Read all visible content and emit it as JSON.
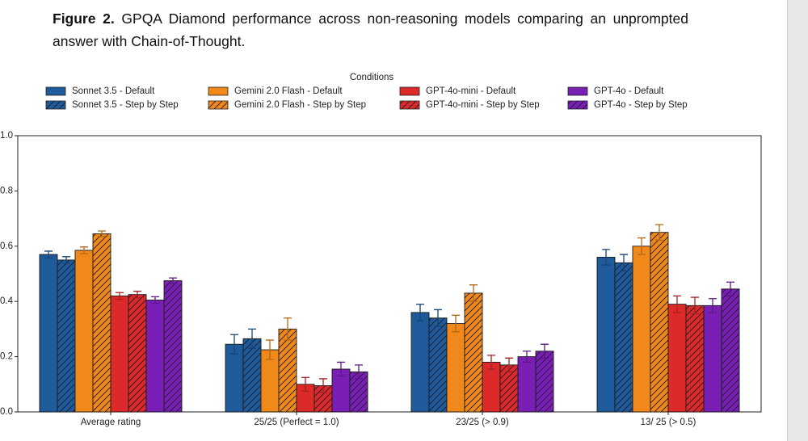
{
  "caption": {
    "label": "Figure 2.",
    "text": "GPQA Diamond performance across non-reasoning models comparing an unprompted answer with Chain-of-Thought."
  },
  "chart_data": {
    "type": "bar",
    "legend_title": "Conditions",
    "legend": "top",
    "categories": [
      "Average rating",
      "25/25 (Perfect = 1.0)",
      "23/25 (> 0.9)",
      "13/ 25 (> 0.5)"
    ],
    "ylim": [
      0,
      1
    ],
    "yticks": [
      {
        "value": 0,
        "label": "0.0"
      },
      {
        "value": 0.2,
        "label": "0.2"
      },
      {
        "value": 0.4,
        "label": "0.4"
      },
      {
        "value": 0.6,
        "label": "0.6"
      },
      {
        "value": 0.8,
        "label": "0.8"
      },
      {
        "value": 1,
        "label": "1.0"
      }
    ],
    "series": [
      {
        "name": "Sonnet 3.5 - Default",
        "color": "#1f5a9a",
        "hatch": false,
        "values": [
          0.57,
          0.245,
          0.36,
          0.56
        ],
        "errors": [
          0.012,
          0.035,
          0.03,
          0.028
        ]
      },
      {
        "name": "Sonnet 3.5 - Step by Step",
        "color": "#1f5a9a",
        "hatch": true,
        "values": [
          0.55,
          0.265,
          0.34,
          0.54
        ],
        "errors": [
          0.012,
          0.035,
          0.03,
          0.03
        ]
      },
      {
        "name": "Gemini 2.0 Flash - Default",
        "color": "#f0891a",
        "hatch": false,
        "values": [
          0.585,
          0.225,
          0.32,
          0.6
        ],
        "errors": [
          0.012,
          0.035,
          0.03,
          0.03
        ]
      },
      {
        "name": "Gemini 2.0 Flash - Step by Step",
        "color": "#f0891a",
        "hatch": true,
        "values": [
          0.645,
          0.3,
          0.43,
          0.65
        ],
        "errors": [
          0.01,
          0.04,
          0.03,
          0.028
        ]
      },
      {
        "name": "GPT-4o-mini - Default",
        "color": "#dc2a2a",
        "hatch": false,
        "values": [
          0.42,
          0.1,
          0.18,
          0.39
        ],
        "errors": [
          0.012,
          0.025,
          0.025,
          0.03
        ]
      },
      {
        "name": "GPT-4o-mini - Step by Step",
        "color": "#dc2a2a",
        "hatch": true,
        "values": [
          0.425,
          0.095,
          0.17,
          0.385
        ],
        "errors": [
          0.012,
          0.025,
          0.025,
          0.03
        ]
      },
      {
        "name": "GPT-4o - Default",
        "color": "#7a1fb5",
        "hatch": false,
        "values": [
          0.405,
          0.155,
          0.2,
          0.385
        ],
        "errors": [
          0.012,
          0.025,
          0.02,
          0.025
        ]
      },
      {
        "name": "GPT-4o - Step by Step",
        "color": "#7a1fb5",
        "hatch": true,
        "values": [
          0.475,
          0.145,
          0.22,
          0.445
        ],
        "errors": [
          0.01,
          0.025,
          0.025,
          0.025
        ]
      }
    ]
  }
}
